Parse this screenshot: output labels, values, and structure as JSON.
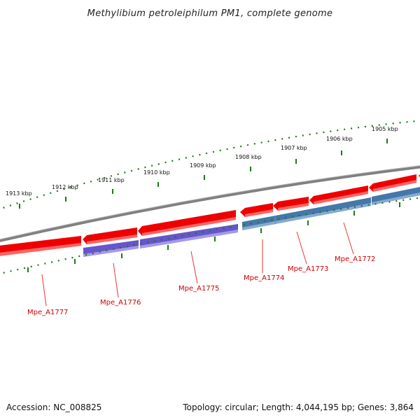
{
  "title": "Methylibium petroleiphilum PM1, complete genome",
  "footer": {
    "accession": "Accession: NC_008825",
    "summary": "Topology: circular; Length: 4,044,195 bp; Genes: 3,864"
  },
  "ticks": [
    "1913 kbp",
    "1912 kbp",
    "1911 kbp",
    "1910 kbp",
    "1909 kbp",
    "1908 kbp",
    "1907 kbp",
    "1906 kbp",
    "1905 kbp"
  ],
  "genes": [
    {
      "label": "Mpe_A1777"
    },
    {
      "label": "Mpe_A1776"
    },
    {
      "label": "Mpe_A1775"
    },
    {
      "label": "Mpe_A1774"
    },
    {
      "label": "Mpe_A1773"
    },
    {
      "label": "Mpe_A1772"
    }
  ],
  "colors": {
    "backbone": "#808080",
    "cds_red": "#ee0000",
    "cds_purple": "#6655cc",
    "cds_blue": "#4477aa",
    "tick_green": "#1a7a1a",
    "label_red": "#cc0000"
  }
}
